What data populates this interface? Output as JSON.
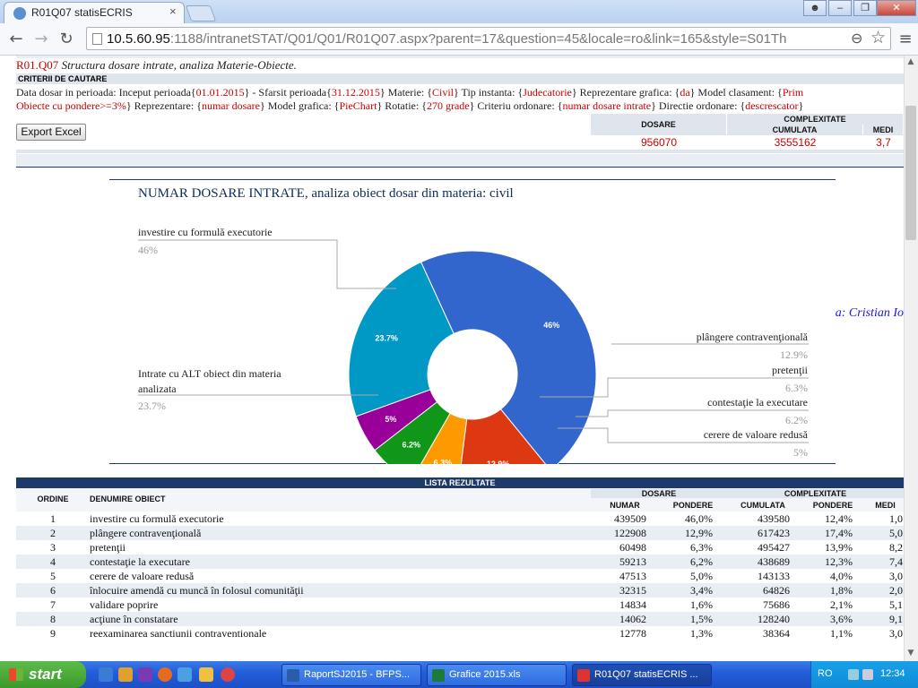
{
  "browser": {
    "tab_title": "R01Q07 statisECRIS",
    "tab_close": "×",
    "url_host": "10.5.60.95",
    "url_rest": ":1188/intranetSTAT/Q01/Q01/R01Q07.aspx?parent=17&question=45&locale=ro&link=165&style=S01Th",
    "minimize": "–",
    "maximize": "❐",
    "close": "✕",
    "back": "←",
    "forward": "→",
    "reload": "↻",
    "zoom": "⊖",
    "star": "☆",
    "menu": "≡"
  },
  "report": {
    "code": "R01.Q07",
    "subtitle": "Structura dosare intrate, analiza Materie-Obiecte.",
    "criteria_header": "CRITERII DE CAUTARE",
    "crit1": [
      {
        "t": "Data dosar in perioada: Inceput perioada{"
      },
      {
        "r": "01.01.2015"
      },
      {
        "t": "} - Sfarsit perioada{"
      },
      {
        "r": "31.12.2015"
      },
      {
        "t": "} Materie: {"
      },
      {
        "r": "Civil"
      },
      {
        "t": "} Tip instanta: {"
      },
      {
        "r": "Judecatorie"
      },
      {
        "t": "} Reprezentare grafica: {"
      },
      {
        "r": "da"
      },
      {
        "t": "} Model clasament: {"
      },
      {
        "r": "Prim"
      }
    ],
    "crit2": [
      {
        "r": "Obiecte cu pondere>=3%"
      },
      {
        "t": "} Reprezentare: {"
      },
      {
        "r": "numar dosare"
      },
      {
        "t": "} Model grafica: {"
      },
      {
        "r": "PieChart"
      },
      {
        "t": "} Rotatie: {"
      },
      {
        "r": "270 grade"
      },
      {
        "t": "} Criteriu ordonare: {"
      },
      {
        "r": "numar dosare intrate"
      },
      {
        "t": "} Directie ordonare: {"
      },
      {
        "r": "descrescator"
      },
      {
        "t": "}"
      }
    ],
    "export_label": "Export Excel",
    "totals": {
      "dosare_label": "DOSARE",
      "complexitate_label": "COMPLEXITATE",
      "cumulata_label": "CUMULATA",
      "medie_label": "MEDI",
      "dosare": "956070",
      "cumulata": "3555162",
      "medie": "3,7"
    },
    "user": "Persoana conectata: Cristian Io"
  },
  "chart_data": {
    "type": "pie",
    "title": "NUMAR DOSARE INTRATE, analiza obiect dosar din materia: civil",
    "slices": [
      {
        "label": "investire cu formulă executorie",
        "value": 46,
        "pct_label": "46%",
        "color": "#3366cc"
      },
      {
        "label": "plângere contravenţională",
        "value": 12.9,
        "pct_label": "12.9%",
        "color": "#dc3912"
      },
      {
        "label": "pretenţii",
        "value": 6.3,
        "pct_label": "6.3%",
        "color": "#ff9900"
      },
      {
        "label": "contestaţie la executare",
        "value": 6.2,
        "pct_label": "6.2%",
        "color": "#109618"
      },
      {
        "label": "cerere de valoare redusă",
        "value": 5,
        "pct_label": "5%",
        "color": "#990099"
      },
      {
        "label": "Intrate cu ALT obiect din materia analizata",
        "value": 23.7,
        "pct_label": "23.7%",
        "color": "#0099c6"
      }
    ],
    "legend_pcts": [
      "46%",
      "12.9%",
      "6.3%",
      "6.2%",
      "5%",
      "23.7%"
    ],
    "donut": true
  },
  "table": {
    "title": "LISTA REZULTATE",
    "h_ordine": "ORDINE",
    "h_denumire": "DENUMIRE OBIECT",
    "h_dosare": "DOSARE",
    "h_complex": "COMPLEXITATE",
    "h_numar": "NUMAR",
    "h_pondere": "PONDERE",
    "h_cumulata": "CUMULATA",
    "h_pondere2": "PONDERE",
    "h_medie": "MEDI",
    "rows": [
      {
        "ord": "1",
        "name": "investire cu formulă executorie",
        "num": "439509",
        "pond": "46,0%",
        "cum": "439580",
        "pond2": "12,4%",
        "med": "1,0"
      },
      {
        "ord": "2",
        "name": "plângere contravenţională",
        "num": "122908",
        "pond": "12,9%",
        "cum": "617423",
        "pond2": "17,4%",
        "med": "5,0"
      },
      {
        "ord": "3",
        "name": "pretenţii",
        "num": "60498",
        "pond": "6,3%",
        "cum": "495427",
        "pond2": "13,9%",
        "med": "8,2"
      },
      {
        "ord": "4",
        "name": "contestaţie la executare",
        "num": "59213",
        "pond": "6,2%",
        "cum": "438689",
        "pond2": "12,3%",
        "med": "7,4"
      },
      {
        "ord": "5",
        "name": "cerere de valoare redusă",
        "num": "47513",
        "pond": "5,0%",
        "cum": "143133",
        "pond2": "4,0%",
        "med": "3,0"
      },
      {
        "ord": "6",
        "name": "înlocuire amendă cu muncă în folosul comunităţii",
        "num": "32315",
        "pond": "3,4%",
        "cum": "64826",
        "pond2": "1,8%",
        "med": "2,0"
      },
      {
        "ord": "7",
        "name": "validare poprire",
        "num": "14834",
        "pond": "1,6%",
        "cum": "75686",
        "pond2": "2,1%",
        "med": "5,1"
      },
      {
        "ord": "8",
        "name": "acţiune în constatare",
        "num": "14062",
        "pond": "1,5%",
        "cum": "128240",
        "pond2": "3,6%",
        "med": "9,1"
      },
      {
        "ord": "9",
        "name": "reexaminarea sanctiunii contraventionale",
        "num": "12778",
        "pond": "1,3%",
        "cum": "38364",
        "pond2": "1,1%",
        "med": "3,0"
      }
    ]
  },
  "taskbar": {
    "start": "start",
    "tasks": [
      {
        "label": "RaportSJ2015 - BFPS...",
        "color": "#2a5caa",
        "active": false
      },
      {
        "label": "Grafice 2015.xls",
        "color": "#1e7a3a",
        "active": false
      },
      {
        "label": "R01Q07 statisECRIS ...",
        "color": "#d33",
        "active": true
      }
    ],
    "lang": "RO",
    "clock": "12:34"
  }
}
